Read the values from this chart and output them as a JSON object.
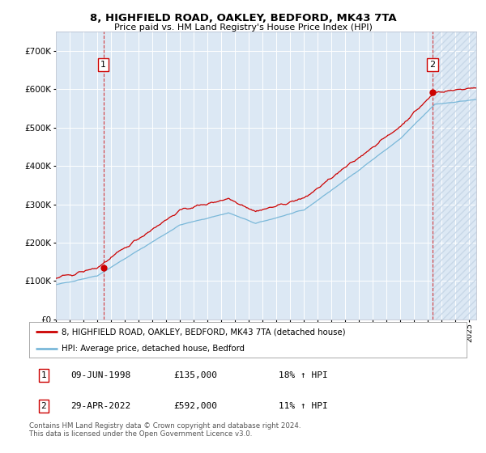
{
  "title": "8, HIGHFIELD ROAD, OAKLEY, BEDFORD, MK43 7TA",
  "subtitle": "Price paid vs. HM Land Registry's House Price Index (HPI)",
  "hpi_color": "#7ab8d9",
  "price_color": "#cc0000",
  "plot_bg": "#dce8f4",
  "grid_color": "#ffffff",
  "annotation1_date": 1998.44,
  "annotation1_value": 135000,
  "annotation2_date": 2022.33,
  "annotation2_value": 592000,
  "legend_line1": "8, HIGHFIELD ROAD, OAKLEY, BEDFORD, MK43 7TA (detached house)",
  "legend_line2": "HPI: Average price, detached house, Bedford",
  "table_row1": [
    "1",
    "09-JUN-1998",
    "£135,000",
    "18% ↑ HPI"
  ],
  "table_row2": [
    "2",
    "29-APR-2022",
    "£592,000",
    "11% ↑ HPI"
  ],
  "footnote": "Contains HM Land Registry data © Crown copyright and database right 2024.\nThis data is licensed under the Open Government Licence v3.0.",
  "ylim": [
    0,
    750000
  ],
  "xlim_start": 1995.0,
  "xlim_end": 2025.5
}
